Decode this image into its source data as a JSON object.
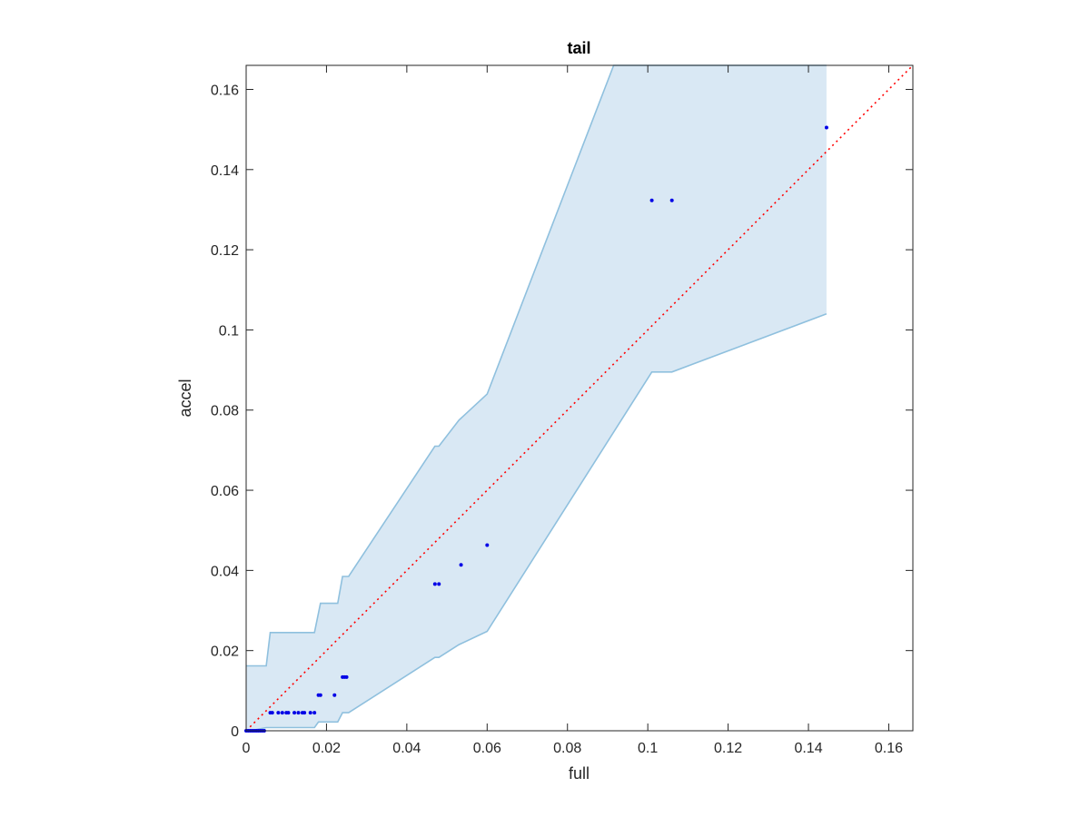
{
  "chart_data": {
    "type": "scatter",
    "title": "tail",
    "xlabel": "full",
    "ylabel": "accel",
    "xlim": [
      0,
      0.166
    ],
    "ylim": [
      0,
      0.166
    ],
    "xticks": [
      0,
      0.02,
      0.04,
      0.06,
      0.08,
      0.1,
      0.12,
      0.14,
      0.16
    ],
    "yticks": [
      0,
      0.02,
      0.04,
      0.06,
      0.08,
      0.1,
      0.12,
      0.14,
      0.16
    ],
    "xtick_labels": [
      "0",
      "0.02",
      "0.04",
      "0.06",
      "0.08",
      "0.1",
      "0.12",
      "0.14",
      "0.16"
    ],
    "ytick_labels": [
      "0",
      "0.02",
      "0.04",
      "0.06",
      "0.08",
      "0.1",
      "0.12",
      "0.14",
      "0.16"
    ],
    "grid": false,
    "colors": {
      "points": "#0000e6",
      "band_fill": "#d9e8f4",
      "band_edge": "#8fc0de",
      "reference_line": "#ff0000",
      "axes": "#262626"
    },
    "reference_line": {
      "style": "dotted",
      "from": [
        0,
        0
      ],
      "to": [
        0.166,
        0.166
      ]
    },
    "band_upper": [
      [
        0,
        0.0162
      ],
      [
        0.005,
        0.0162
      ],
      [
        0.006,
        0.0245
      ],
      [
        0.017,
        0.0245
      ],
      [
        0.0185,
        0.0318
      ],
      [
        0.0228,
        0.0318
      ],
      [
        0.024,
        0.0385
      ],
      [
        0.0255,
        0.0385
      ],
      [
        0.047,
        0.071
      ],
      [
        0.048,
        0.071
      ],
      [
        0.053,
        0.0775
      ],
      [
        0.06,
        0.084
      ],
      [
        0.0915,
        0.166
      ],
      [
        0.1445,
        0.166
      ]
    ],
    "band_lower": [
      [
        0.1445,
        0.104
      ],
      [
        0.106,
        0.0895
      ],
      [
        0.101,
        0.0895
      ],
      [
        0.06,
        0.0248
      ],
      [
        0.053,
        0.0215
      ],
      [
        0.048,
        0.0183
      ],
      [
        0.047,
        0.0183
      ],
      [
        0.0255,
        0.0045
      ],
      [
        0.024,
        0.0045
      ],
      [
        0.0228,
        0.0022
      ],
      [
        0.018,
        0.0022
      ],
      [
        0.017,
        0.0008
      ],
      [
        0.006,
        0.0008
      ],
      [
        0.005,
        0.0008
      ],
      [
        0.001,
        0
      ],
      [
        0,
        0
      ]
    ],
    "points": [
      [
        0,
        0
      ],
      [
        0.0005,
        0
      ],
      [
        0.001,
        0
      ],
      [
        0.0015,
        0
      ],
      [
        0.002,
        0
      ],
      [
        0.0025,
        0
      ],
      [
        0.003,
        0
      ],
      [
        0.0035,
        0
      ],
      [
        0.004,
        0
      ],
      [
        0.0045,
        0
      ],
      [
        0.006,
        0.0045
      ],
      [
        0.0065,
        0.0045
      ],
      [
        0.008,
        0.0045
      ],
      [
        0.009,
        0.0045
      ],
      [
        0.01,
        0.0045
      ],
      [
        0.0105,
        0.0045
      ],
      [
        0.012,
        0.0045
      ],
      [
        0.013,
        0.0045
      ],
      [
        0.014,
        0.0045
      ],
      [
        0.0145,
        0.0045
      ],
      [
        0.016,
        0.0045
      ],
      [
        0.017,
        0.0045
      ],
      [
        0.018,
        0.0089
      ],
      [
        0.0185,
        0.0089
      ],
      [
        0.022,
        0.0089
      ],
      [
        0.024,
        0.0134
      ],
      [
        0.0245,
        0.0134
      ],
      [
        0.025,
        0.0134
      ],
      [
        0.047,
        0.0366
      ],
      [
        0.048,
        0.0366
      ],
      [
        0.0535,
        0.0414
      ],
      [
        0.06,
        0.0463
      ],
      [
        0.101,
        0.1323
      ],
      [
        0.106,
        0.1323
      ],
      [
        0.1445,
        0.1505
      ]
    ]
  }
}
